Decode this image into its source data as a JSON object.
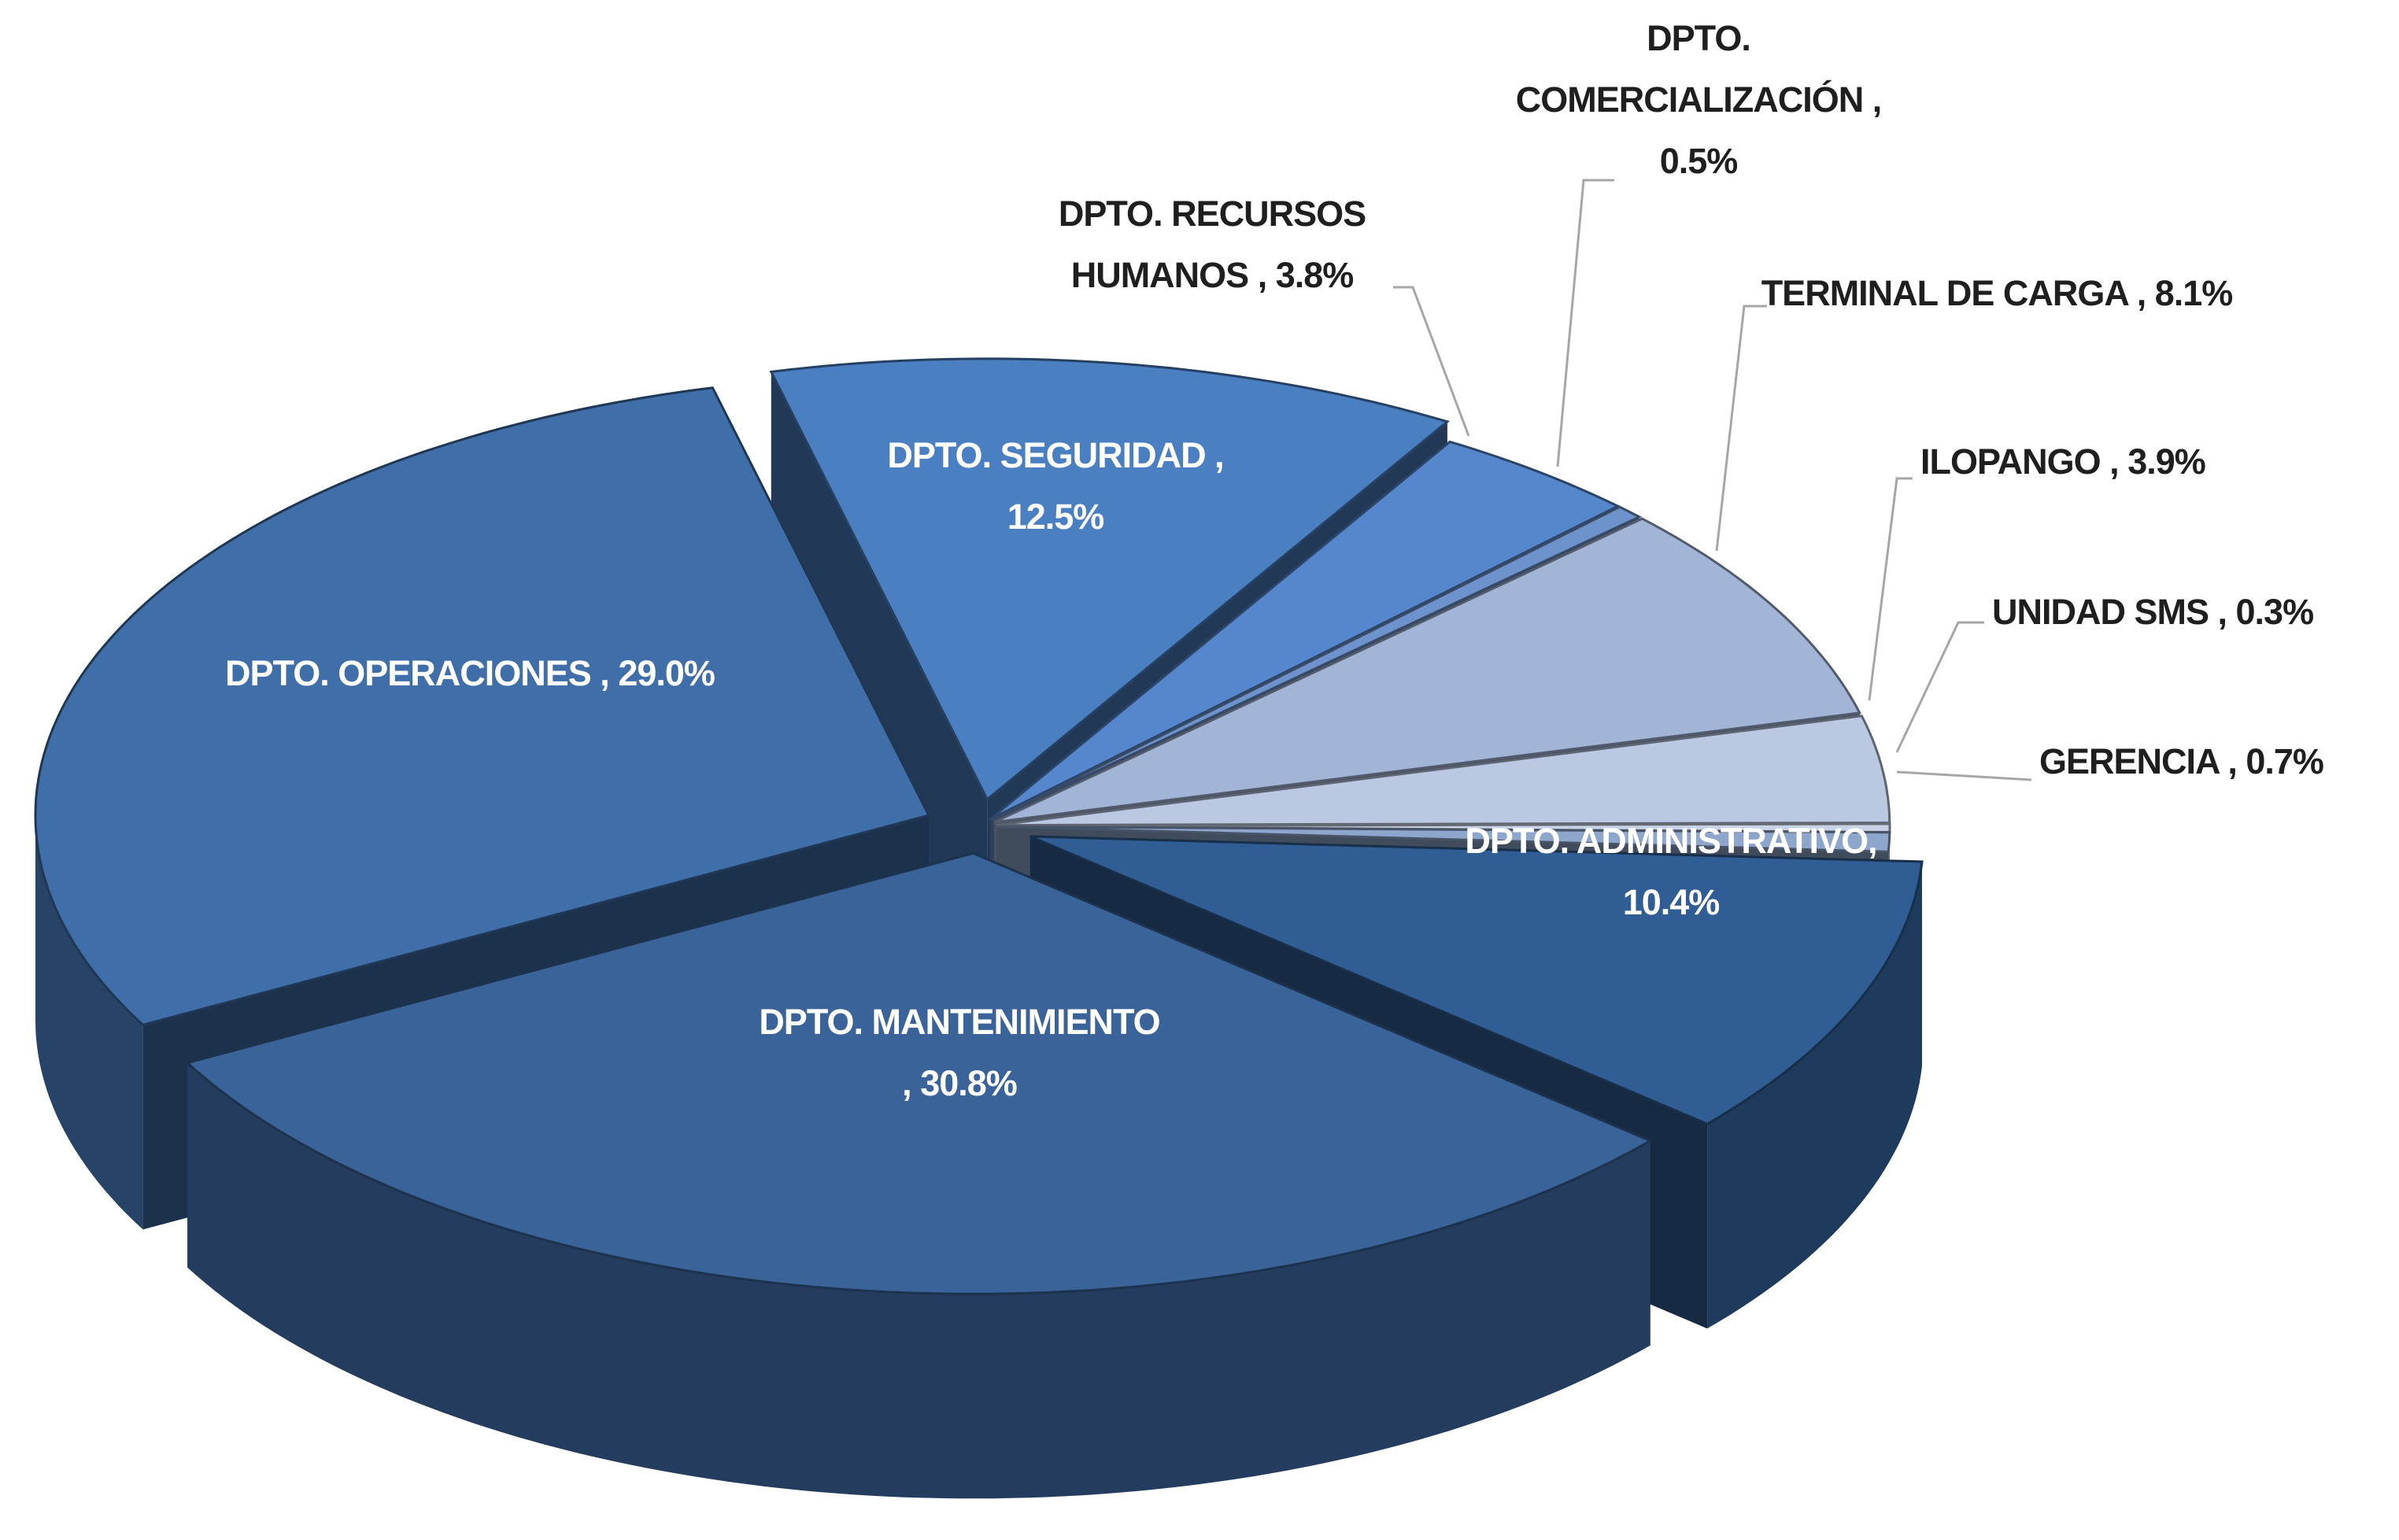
{
  "chart_data": {
    "type": "pie",
    "categories": [
      "DPTO. SEGURIDAD ,",
      "DPTO. RECURSOS HUMANOS ,",
      "DPTO. COMERCIALIZACIÓN ,",
      "TERMINAL DE CARGA ,",
      "ILOPANGO ,",
      "UNIDAD SMS ,",
      "GERENCIA ,",
      "DPTO. ADMINISTRATIVO,",
      "DPTO. MANTENIMIENTO ,",
      "DPTO. OPERACIONES ,"
    ],
    "values": [
      12.5,
      3.8,
      0.5,
      8.1,
      3.9,
      0.3,
      0.7,
      10.4,
      30.8,
      29.0
    ],
    "value_labels": [
      "12.5%",
      "3.8%",
      "0.5%",
      "8.1%",
      "3.9%",
      "0.3%",
      "0.7%",
      "10.4%",
      "30.8%",
      "29.0%"
    ],
    "colors": [
      "#4a7fc1",
      "#5687cd",
      "#6e93cc",
      "#a3b5d6",
      "#bac8e1",
      "#c9d3e6",
      "#8ea6cc",
      "#305d94",
      "#3a6399",
      "#3f6ea8"
    ]
  }
}
